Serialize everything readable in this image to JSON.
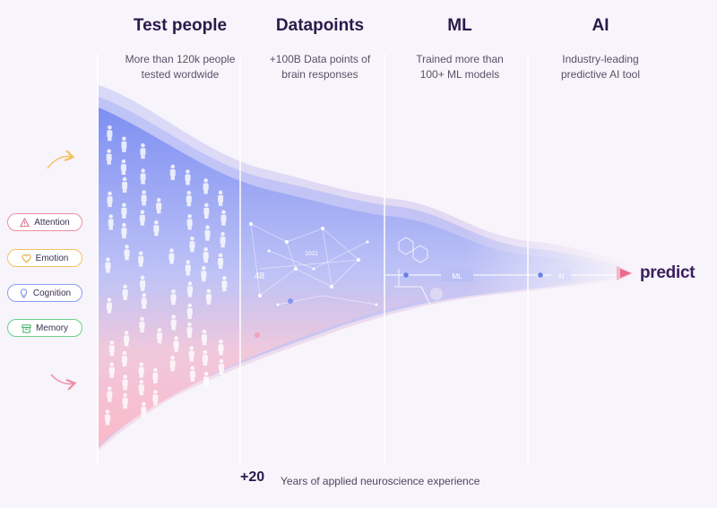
{
  "stages": [
    {
      "title": "Test people",
      "desc_line1": "More than 120k people",
      "desc_line2": "tested wordwide"
    },
    {
      "title": "Datapoints",
      "desc_line1": "+100B Data points of",
      "desc_line2": "brain responses"
    },
    {
      "title": "ML",
      "desc_line1": "Trained more than",
      "desc_line2": "100+ ML models"
    },
    {
      "title": "AI",
      "desc_line1": "Industry-leading",
      "desc_line2": "predictive AI tool"
    }
  ],
  "pills": [
    {
      "label": "Attention",
      "icon": "warning-triangle-icon",
      "color": "#ef8ea4"
    },
    {
      "label": "Emotion",
      "icon": "heart-icon",
      "color": "#f2c262"
    },
    {
      "label": "Cognition",
      "icon": "lightbulb-icon",
      "color": "#8a9ff0"
    },
    {
      "label": "Memory",
      "icon": "archive-box-icon",
      "color": "#69cf85"
    }
  ],
  "funnel_labels": {
    "datapoints_count": "48",
    "datapoints_small": "1011",
    "ml_label": "ML",
    "ai_label": "AI"
  },
  "footer": {
    "number": "+20",
    "text": "Years of applied neuroscience experience"
  },
  "brand": {
    "name": "predict",
    "color": "#e96b8f"
  },
  "colors": {
    "blue": "#7f92f2",
    "pink": "#f7b7cb",
    "title": "#2a1a4a"
  }
}
